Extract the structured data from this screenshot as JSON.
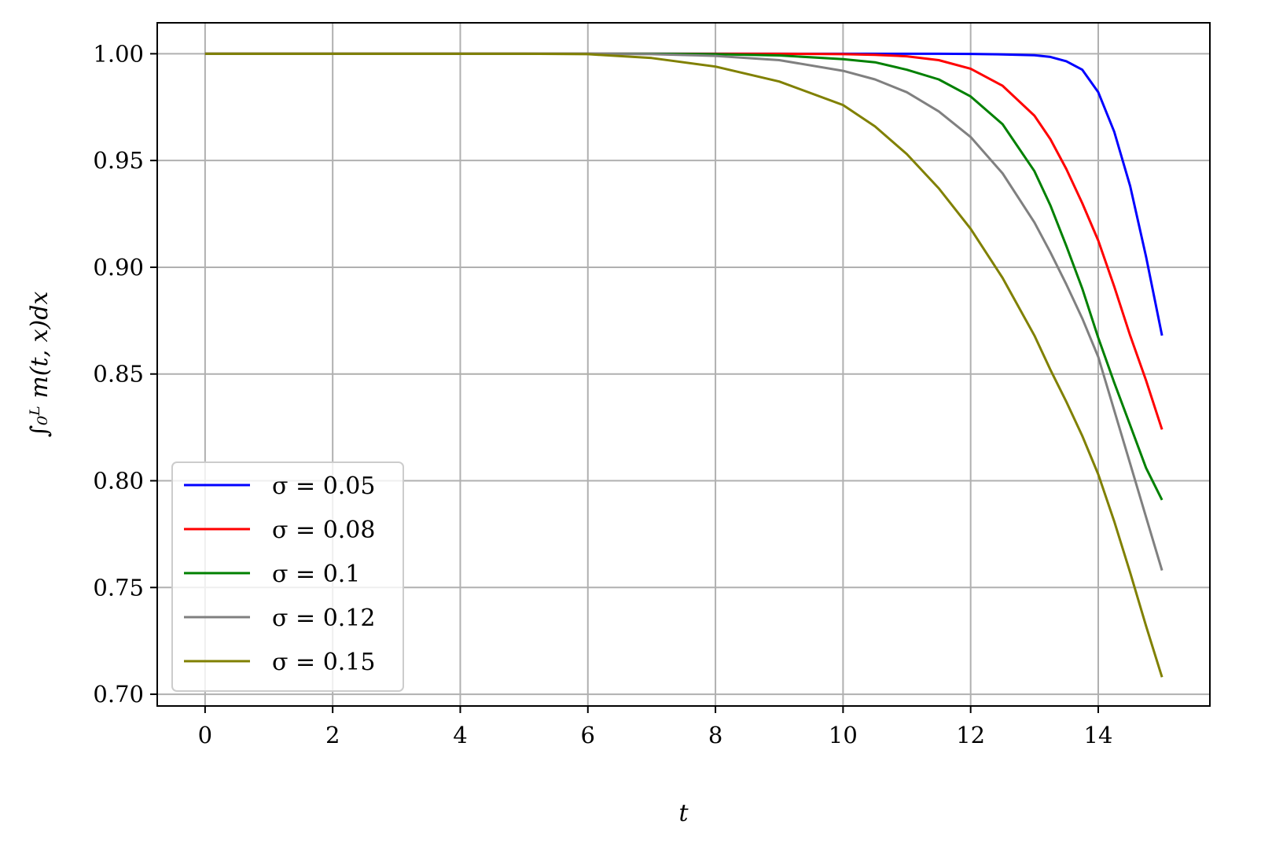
{
  "chart_data": {
    "type": "line",
    "xlabel": "t",
    "ylabel": "∫₀ᴸ m(t, x)dx",
    "xlim": [
      -0.75,
      15.75
    ],
    "ylim": [
      0.6945,
      1.0145
    ],
    "x_ticks": [
      0,
      2,
      4,
      6,
      8,
      10,
      12,
      14
    ],
    "x_tick_labels": [
      "0",
      "2",
      "4",
      "6",
      "8",
      "10",
      "12",
      "14"
    ],
    "y_ticks": [
      0.7,
      0.75,
      0.8,
      0.85,
      0.9,
      0.95,
      1.0
    ],
    "y_tick_labels": [
      "0.70",
      "0.75",
      "0.80",
      "0.85",
      "0.90",
      "0.95",
      "1.00"
    ],
    "grid": true,
    "legend_position": "lower-left",
    "x": [
      0,
      1,
      2,
      3,
      4,
      5,
      6,
      7,
      8,
      9,
      10,
      10.5,
      11,
      11.5,
      12,
      12.5,
      13,
      13.25,
      13.5,
      13.75,
      14,
      14.25,
      14.5,
      14.75,
      15
    ],
    "series": [
      {
        "name": "σ = 0.05",
        "color": "#0000ff",
        "values": [
          1.0,
          1.0,
          1.0,
          1.0,
          1.0,
          1.0,
          1.0,
          1.0,
          1.0,
          1.0,
          1.0,
          1.0,
          1.0,
          1.0,
          0.9999,
          0.9997,
          0.9993,
          0.9985,
          0.9965,
          0.9925,
          0.982,
          0.9635,
          0.938,
          0.905,
          0.868
        ]
      },
      {
        "name": "σ = 0.08",
        "color": "#ff0000",
        "values": [
          1.0,
          1.0,
          1.0,
          1.0,
          1.0,
          1.0,
          1.0,
          1.0,
          1.0,
          1.0,
          0.9998,
          0.9995,
          0.9988,
          0.997,
          0.993,
          0.985,
          0.971,
          0.96,
          0.946,
          0.93,
          0.9125,
          0.891,
          0.868,
          0.847,
          0.824
        ]
      },
      {
        "name": "σ = 0.1",
        "color": "#008000",
        "values": [
          1.0,
          1.0,
          1.0,
          1.0,
          1.0,
          1.0,
          1.0,
          1.0,
          0.9998,
          0.9992,
          0.9975,
          0.996,
          0.9925,
          0.988,
          0.98,
          0.967,
          0.945,
          0.929,
          0.91,
          0.89,
          0.867,
          0.846,
          0.826,
          0.806,
          0.791
        ]
      },
      {
        "name": "σ = 0.12",
        "color": "#808080",
        "values": [
          1.0,
          1.0,
          1.0,
          1.0,
          1.0,
          1.0,
          1.0,
          0.9998,
          0.999,
          0.997,
          0.992,
          0.988,
          0.982,
          0.973,
          0.961,
          0.944,
          0.921,
          0.907,
          0.892,
          0.876,
          0.858,
          0.833,
          0.808,
          0.783,
          0.758
        ]
      },
      {
        "name": "σ = 0.15",
        "color": "#808000",
        "values": [
          1.0,
          1.0,
          1.0,
          1.0,
          1.0,
          1.0,
          0.9998,
          0.998,
          0.994,
          0.987,
          0.976,
          0.966,
          0.953,
          0.937,
          0.918,
          0.895,
          0.868,
          0.852,
          0.837,
          0.821,
          0.803,
          0.781,
          0.757,
          0.732,
          0.708
        ]
      }
    ]
  }
}
